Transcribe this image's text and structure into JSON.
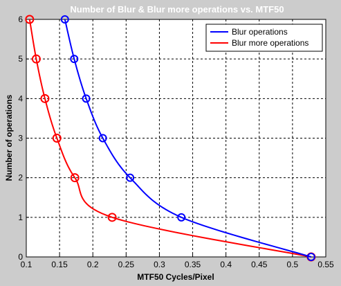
{
  "chart_data": {
    "type": "line",
    "title": "Number of Blur & Blur more operations vs. MTF50",
    "xlabel": "MTF50 Cycles/Pixel",
    "ylabel": "Number of operations",
    "xlim": [
      0.1,
      0.55
    ],
    "ylim": [
      0,
      6
    ],
    "xticks": [
      "0.1",
      "0.15",
      "0.2",
      "0.25",
      "0.3",
      "0.35",
      "0.4",
      "0.45",
      "0.5",
      "0.55"
    ],
    "yticks": [
      "0",
      "1",
      "2",
      "3",
      "4",
      "5",
      "6"
    ],
    "grid": true,
    "legend_position": "top-right",
    "series": [
      {
        "name": "Blur operations",
        "color": "#0000ff",
        "points": [
          {
            "x": 0.158,
            "y": 6
          },
          {
            "x": 0.172,
            "y": 5
          },
          {
            "x": 0.19,
            "y": 4
          },
          {
            "x": 0.215,
            "y": 3
          },
          {
            "x": 0.256,
            "y": 2
          },
          {
            "x": 0.333,
            "y": 1
          },
          {
            "x": 0.528,
            "y": 0
          }
        ]
      },
      {
        "name": "Blur more operations",
        "color": "#ff0000",
        "points": [
          {
            "x": 0.105,
            "y": 6
          },
          {
            "x": 0.115,
            "y": 5
          },
          {
            "x": 0.128,
            "y": 4
          },
          {
            "x": 0.146,
            "y": 3
          },
          {
            "x": 0.173,
            "y": 2
          },
          {
            "x": 0.229,
            "y": 1
          },
          {
            "x": 0.528,
            "y": 0
          }
        ]
      }
    ]
  }
}
